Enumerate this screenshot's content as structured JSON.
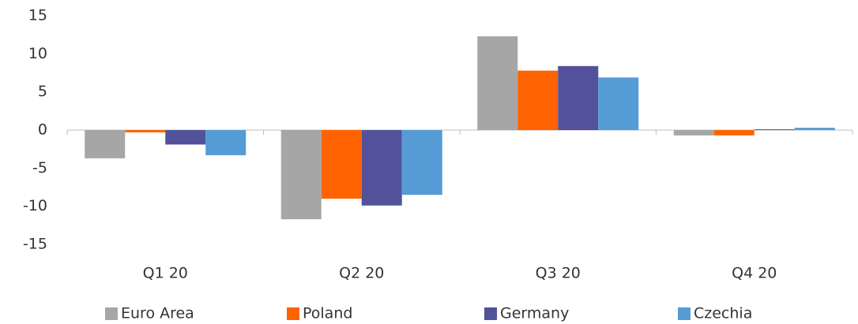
{
  "chart_data": {
    "type": "bar",
    "categories": [
      "Q1 20",
      "Q2 20",
      "Q3 20",
      "Q4 20"
    ],
    "series": [
      {
        "name": "Euro Area",
        "color": "#a6a6a6",
        "values": [
          -3.7,
          -11.7,
          12.3,
          -0.7
        ]
      },
      {
        "name": "Poland",
        "color": "#ff6200",
        "values": [
          -0.3,
          -9.0,
          7.8,
          -0.7
        ]
      },
      {
        "name": "Germany",
        "color": "#525199",
        "values": [
          -1.9,
          -9.9,
          8.4,
          0.1
        ]
      },
      {
        "name": "Czechia",
        "color": "#559cd6",
        "values": [
          -3.3,
          -8.5,
          6.9,
          0.3
        ]
      }
    ],
    "ylim": [
      -15,
      15
    ],
    "yticks": [
      -15,
      -10,
      -5,
      0,
      5,
      10,
      15
    ],
    "legend": "bottom"
  }
}
